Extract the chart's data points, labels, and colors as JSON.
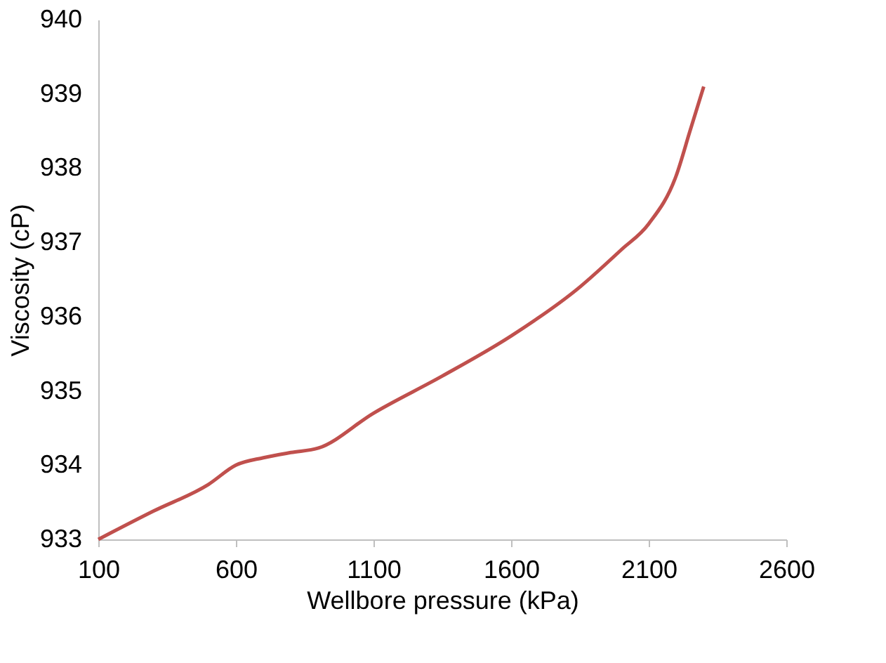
{
  "chart_data": {
    "type": "line",
    "xlabel": "Wellbore pressure (kPa)",
    "ylabel": "Viscosity (cP)",
    "x": [
      100,
      300,
      500,
      600,
      700,
      800,
      900,
      1100,
      1350,
      1600,
      1850,
      2000,
      2100,
      2200,
      2250,
      2300
    ],
    "series": [
      {
        "color": "#c0504d",
        "values": [
          933.0,
          933.38,
          933.74,
          934.0,
          934.1,
          934.17,
          934.23,
          934.7,
          935.2,
          935.74,
          936.4,
          936.9,
          937.25,
          937.9,
          938.5,
          939.1
        ]
      }
    ],
    "xlim": [
      100,
      2600
    ],
    "xticks": [
      100,
      600,
      1100,
      1600,
      2100,
      2600
    ],
    "ylim": [
      933,
      940
    ],
    "yticks": [
      933,
      934,
      935,
      936,
      937,
      938,
      939,
      940
    ],
    "grid": false,
    "marker": "none",
    "line_style": "solid"
  }
}
